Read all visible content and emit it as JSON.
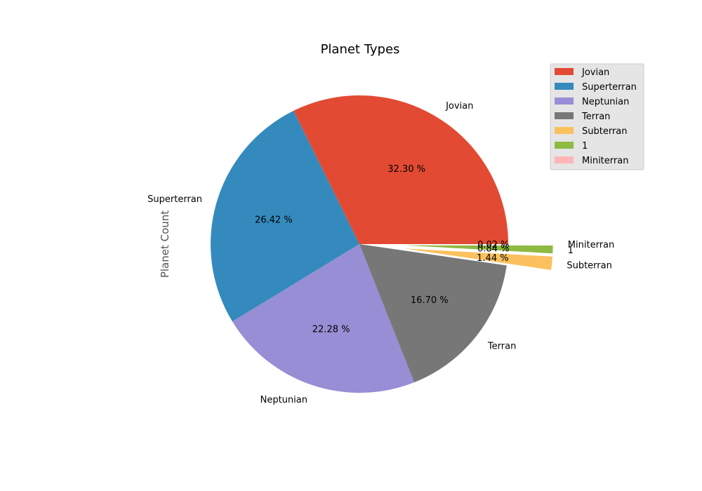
{
  "chart_data": {
    "type": "pie",
    "title": "Planet Types",
    "ylabel": "Planet Count",
    "slices": [
      {
        "label": "Jovian",
        "value": 32.3,
        "pct_label": "32.30 %",
        "color": "#E24A33",
        "explode": 0
      },
      {
        "label": "Superterran",
        "value": 26.42,
        "pct_label": "26.42 %",
        "color": "#348ABD",
        "explode": 0
      },
      {
        "label": "Neptunian",
        "value": 22.28,
        "pct_label": "22.28 %",
        "color": "#988ED5",
        "explode": 0
      },
      {
        "label": "Terran",
        "value": 16.7,
        "pct_label": "16.70 %",
        "color": "#777777",
        "explode": 0
      },
      {
        "label": "Subterran",
        "value": 1.44,
        "pct_label": "1.44 %",
        "color": "#FBC15E",
        "explode": 0.3
      },
      {
        "label": "1",
        "value": 0.84,
        "pct_label": "0.84 %",
        "color": "#8EBA42",
        "explode": 0.3
      },
      {
        "label": "Miniterran",
        "value": 0.02,
        "pct_label": "0.02 %",
        "color": "#FFB5B8",
        "explode": 0.3
      }
    ],
    "legend_position": "top-right",
    "start_angle": 0,
    "direction": "counterclockwise"
  }
}
